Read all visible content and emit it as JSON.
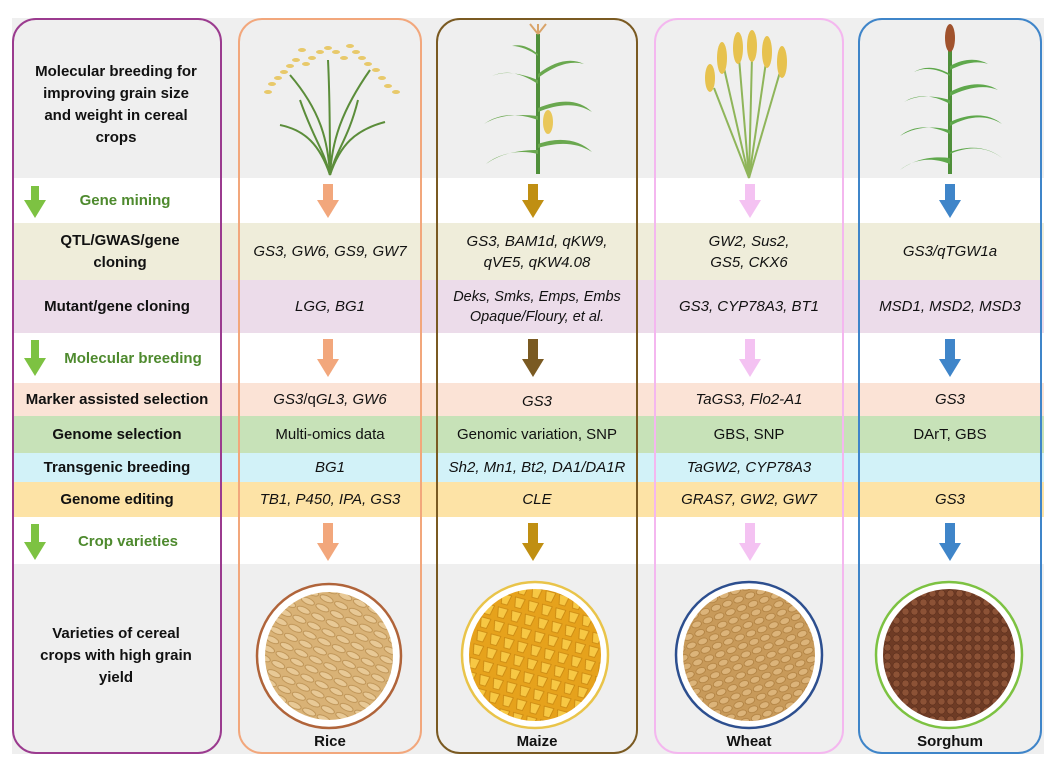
{
  "colors": {
    "summary_frame": "#9b3b8f",
    "rice": "#f2a77c",
    "maize": "#7a5a22",
    "wheat": "#f4b7ef",
    "sorghum": "#3f85c9",
    "green_arrow": "#7dc242",
    "green_text": "#4e8a2e",
    "band_qtl": "#efedda",
    "band_mutant": "#ecdcea",
    "band_mas": "#fbe3d6",
    "band_gs": "#c7e2b8",
    "band_tb": "#d2f2f8",
    "band_ge": "#fde3a6",
    "band_grey": "#efefef"
  },
  "summary": {
    "title": "Molecular breeding for improving grain size and weight in cereal crops",
    "gene_mining": "Gene mining",
    "molecular_breeding": "Molecular breeding",
    "crop_varieties": "Crop varieties",
    "varieties_text": "Varieties of cereal crops with high grain yield"
  },
  "rows": {
    "qtl": "QTL/GWAS/gene cloning",
    "mutant": "Mutant/gene cloning",
    "mas": "Marker assisted selection",
    "gs": "Genome selection",
    "tb": "Transgenic breeding",
    "ge": "Genome editing"
  },
  "crops": {
    "rice": {
      "name": "Rice",
      "qtl": "GS3, GW6, GS9, GW7",
      "mutant": "LGG, BG1",
      "mas_a": "GS3",
      "mas_b": "/q",
      "mas_c": "GL3, GW6",
      "gs": "Multi-omics data",
      "tb": "BG1",
      "ge": "TB1, P450, IPA, GS3"
    },
    "maize": {
      "name": "Maize",
      "qtl_1": "GS3, BAM1d, qKW9,",
      "qtl_2": "qVE5, qKW4.08",
      "mutant_1": "Deks, Smks, Emps, Embs",
      "mutant_2": "Opaque/Floury, et al.",
      "mas": "GS3",
      "gs": "Genomic variation, SNP",
      "tb": "Sh2, Mn1, Bt2, DA1/DA1R",
      "ge": "CLE"
    },
    "wheat": {
      "name": "Wheat",
      "qtl_1": "GW2, Sus2,",
      "qtl_2": "GS5, CKX6",
      "mutant": "GS3, CYP78A3, BT1",
      "mas": "TaGS3, Flo2-A1",
      "gs": "GBS, SNP",
      "tb": "TaGW2, CYP78A3",
      "ge": "GRAS7, GW2, GW7"
    },
    "sorghum": {
      "name": "Sorghum",
      "qtl": "GS3/qTGW1a",
      "mutant": "MSD1, MSD2, MSD3",
      "mas": "GS3",
      "gs": "DArT, GBS",
      "tb": "",
      "ge": "GS3"
    }
  }
}
